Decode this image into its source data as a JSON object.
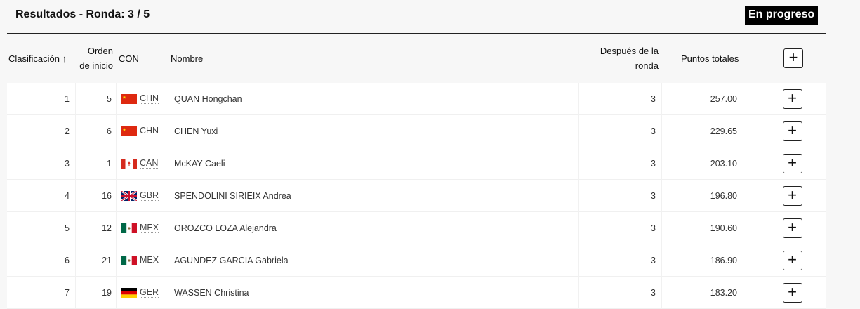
{
  "header": {
    "title": "Resultados - Ronda: 3 / 5",
    "status": "En progreso"
  },
  "columns": {
    "rank": "Clasificación ↑",
    "start_order": "Orden de inicio",
    "noc": "CON",
    "name": "Nombre",
    "after_round": "Después de la ronda",
    "total": "Puntos totales",
    "expand": "+"
  },
  "rows": [
    {
      "rank": "1",
      "start": "5",
      "noc": "CHN",
      "flag": "china",
      "name": "QUAN Hongchan",
      "round": "3",
      "total": "257.00"
    },
    {
      "rank": "2",
      "start": "6",
      "noc": "CHN",
      "flag": "china",
      "name": "CHEN Yuxi",
      "round": "3",
      "total": "229.65"
    },
    {
      "rank": "3",
      "start": "1",
      "noc": "CAN",
      "flag": "canada",
      "name": "McKAY Caeli",
      "round": "3",
      "total": "203.10"
    },
    {
      "rank": "4",
      "start": "16",
      "noc": "GBR",
      "flag": "uk",
      "name": "SPENDOLINI SIRIEIX Andrea",
      "round": "3",
      "total": "196.80"
    },
    {
      "rank": "5",
      "start": "12",
      "noc": "MEX",
      "flag": "mexico",
      "name": "OROZCO LOZA Alejandra",
      "round": "3",
      "total": "190.60"
    },
    {
      "rank": "6",
      "start": "21",
      "noc": "MEX",
      "flag": "mexico",
      "name": "AGUNDEZ GARCIA Gabriela",
      "round": "3",
      "total": "186.90"
    },
    {
      "rank": "7",
      "start": "19",
      "noc": "GER",
      "flag": "germany",
      "name": "WASSEN Christina",
      "round": "3",
      "total": "183.20"
    }
  ],
  "expand_label": "+"
}
